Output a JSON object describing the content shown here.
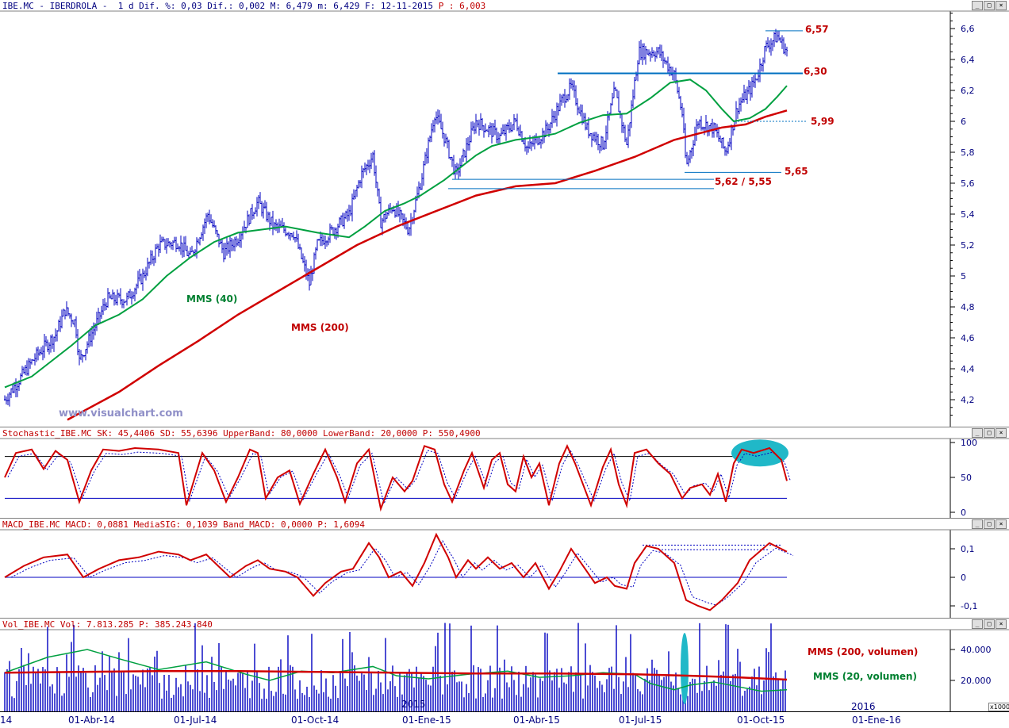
{
  "price_panel": {
    "header_main": "IBE.MC - IBERDROLA -  1 d Dif. %: 0,03 Dif.: 0,002 M: 6,479 m: 6,429 F: 12-11-2015",
    "header_p": "P : 6,003",
    "watermark": "www.visualchart.com",
    "label_mms40": "MMS (40)",
    "label_mms200": "MMS (200)",
    "lvl_657": "6,57",
    "lvl_630": "6,30",
    "lvl_599": "5,99",
    "lvl_565": "5,65",
    "lvl_562_555": "5,62 / 5,55",
    "yticks": [
      "6,6",
      "6,4",
      "6,2",
      "6",
      "5,8",
      "5,6",
      "5,4",
      "5,2",
      "5",
      "4,8",
      "4,6",
      "4,4",
      "4,2"
    ]
  },
  "stoch_panel": {
    "header": "Stochastic_IBE.MC SK: 45,4406 SD: 55,6396 UpperBand: 80,0000 LowerBand: 20,0000 P: 550,4900",
    "yticks": [
      "100",
      "50",
      "0"
    ]
  },
  "macd_panel": {
    "header": "MACD_IBE.MC MACD: 0,0881 MediaSIG: 0,1039 Band_MACD: 0,0000 P: 1,6094",
    "yticks": [
      "0,1",
      "0",
      "-0,1"
    ]
  },
  "vol_panel": {
    "header": "Vol_IBE.MC Vol: 7.813.285 P: 385.243.840",
    "label_mms200": "MMS (200, volumen)",
    "label_mms20": "MMS (20, volumen)",
    "yticks": [
      "40.000",
      "20.000"
    ],
    "unit": "x1000",
    "year_marker": "2015"
  },
  "xaxis": {
    "labels": [
      "14",
      "01-Abr-14",
      "01-Jul-14",
      "01-Oct-14",
      "01-Ene-15",
      "01-Abr-15",
      "01-Jul-15",
      "01-Oct-15",
      "01-Ene-16"
    ],
    "year_label": "2016"
  },
  "colors": {
    "price": "#0000c0",
    "mms40": "#00a040",
    "mms200": "#d00000",
    "level_line": "#0070c0",
    "highlight": "#20b8c8",
    "header_text": "#000080"
  },
  "chart_data": [
    {
      "type": "line",
      "title": "IBE.MC - IBERDROLA - 1 d",
      "x": [
        "01-Abr-14",
        "01-Jul-14",
        "01-Oct-14",
        "01-Ene-15",
        "01-Abr-15",
        "01-Jul-15",
        "01-Oct-15"
      ],
      "series": [
        {
          "name": "Price",
          "values": [
            4.7,
            5.3,
            5.1,
            6.0,
            5.9,
            6.45,
            6.55
          ]
        },
        {
          "name": "MMS (40)",
          "values": [
            4.55,
            5.1,
            5.25,
            5.65,
            5.9,
            6.1,
            6.05
          ]
        },
        {
          "name": "MMS (200)",
          "values": [
            4.25,
            4.6,
            4.95,
            5.3,
            5.6,
            5.85,
            6.02
          ]
        }
      ],
      "levels": [
        6.57,
        6.3,
        5.99,
        5.65,
        5.62,
        5.55
      ],
      "ylim": [
        4.1,
        6.7
      ]
    },
    {
      "type": "line",
      "title": "Stochastic",
      "series": [
        {
          "name": "SK",
          "values": [
            45.44
          ]
        },
        {
          "name": "SD",
          "values": [
            55.64
          ]
        }
      ],
      "bands": [
        80,
        20
      ],
      "ylim": [
        0,
        100
      ]
    },
    {
      "type": "line",
      "title": "MACD",
      "series": [
        {
          "name": "MACD",
          "values": [
            0.0881
          ]
        },
        {
          "name": "MediaSIG",
          "values": [
            0.1039
          ]
        }
      ],
      "ylim": [
        -0.12,
        0.15
      ]
    },
    {
      "type": "bar",
      "title": "Volumen",
      "series": [
        {
          "name": "MMS (200, volumen)",
          "values": [
            25000
          ]
        },
        {
          "name": "MMS (20, volumen)",
          "values": [
            13000
          ]
        }
      ],
      "ylim": [
        0,
        55000
      ]
    }
  ]
}
